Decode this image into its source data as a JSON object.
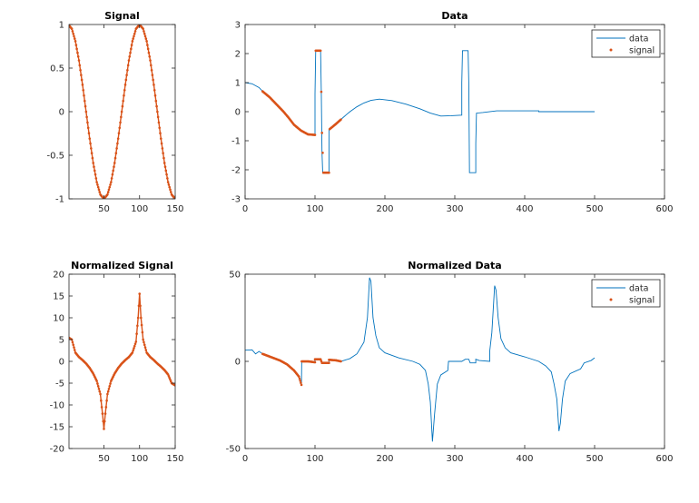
{
  "colors": {
    "data": "#0072BD",
    "signal": "#D95319",
    "axis": "#262626"
  },
  "chart_data": [
    {
      "id": "signal",
      "type": "line",
      "title": "Signal",
      "xlim": [
        1,
        150
      ],
      "ylim": [
        -1,
        1
      ],
      "xticks": [
        50,
        100,
        150
      ],
      "xtick_labels": [
        "50",
        "100",
        "150"
      ],
      "yticks": [
        -1,
        -0.5,
        0,
        0.5,
        1
      ],
      "ytick_labels": [
        "-1",
        "-0.5",
        "0",
        "0.5",
        "1"
      ],
      "legend": null,
      "series": [
        {
          "name": "signal",
          "style": "line+dots",
          "color": "signal",
          "points": [
            [
              0,
              1
            ],
            [
              5,
              0.951
            ],
            [
              10,
              0.809
            ],
            [
              15,
              0.588
            ],
            [
              20,
              0.309
            ],
            [
              25,
              0
            ],
            [
              30,
              -0.309
            ],
            [
              35,
              -0.588
            ],
            [
              40,
              -0.809
            ],
            [
              45,
              -0.951
            ],
            [
              50,
              -1
            ],
            [
              55,
              -0.951
            ],
            [
              60,
              -0.809
            ],
            [
              65,
              -0.588
            ],
            [
              70,
              -0.309
            ],
            [
              75,
              0
            ],
            [
              80,
              0.309
            ],
            [
              85,
              0.588
            ],
            [
              90,
              0.809
            ],
            [
              95,
              0.951
            ],
            [
              100,
              1
            ],
            [
              105,
              0.951
            ],
            [
              110,
              0.809
            ],
            [
              115,
              0.588
            ],
            [
              120,
              0.309
            ],
            [
              125,
              0
            ],
            [
              130,
              -0.309
            ],
            [
              135,
              -0.588
            ],
            [
              140,
              -0.809
            ],
            [
              145,
              -0.951
            ],
            [
              150,
              -1
            ]
          ]
        }
      ]
    },
    {
      "id": "data",
      "type": "line",
      "title": "Data",
      "xlim": [
        0,
        600
      ],
      "ylim": [
        -3,
        3
      ],
      "xticks": [
        0,
        100,
        200,
        300,
        400,
        500,
        600
      ],
      "xtick_labels": [
        "0",
        "100",
        "200",
        "300",
        "400",
        "500",
        "600"
      ],
      "yticks": [
        -3,
        -2,
        -1,
        0,
        1,
        2,
        3
      ],
      "ytick_labels": [
        "-3",
        "-2",
        "-1",
        "0",
        "1",
        "2",
        "3"
      ],
      "legend": {
        "position": "top-right",
        "entries": [
          "data",
          "signal"
        ]
      },
      "series": [
        {
          "name": "data",
          "style": "line",
          "color": "data",
          "points": [
            [
              0,
              1
            ],
            [
              10,
              0.96
            ],
            [
              20,
              0.83
            ],
            [
              25,
              0.7
            ],
            [
              35,
              0.5
            ],
            [
              45,
              0.25
            ],
            [
              55,
              0
            ],
            [
              62,
              -0.2
            ],
            [
              70,
              -0.45
            ],
            [
              80,
              -0.65
            ],
            [
              90,
              -0.78
            ],
            [
              100,
              -0.8
            ],
            [
              100,
              0.6
            ],
            [
              101,
              2.1
            ],
            [
              108,
              2.1
            ],
            [
              109,
              0.7
            ],
            [
              110,
              -1.4
            ],
            [
              111,
              -2.1
            ],
            [
              120,
              -2.1
            ],
            [
              120,
              -0.6
            ],
            [
              130,
              -0.42
            ],
            [
              137,
              -0.27
            ],
            [
              145,
              -0.1
            ],
            [
              150,
              0
            ],
            [
              160,
              0.17
            ],
            [
              170,
              0.3
            ],
            [
              180,
              0.39
            ],
            [
              192,
              0.43
            ],
            [
              210,
              0.38
            ],
            [
              230,
              0.26
            ],
            [
              250,
              0.1
            ],
            [
              265,
              -0.05
            ],
            [
              280,
              -0.15
            ],
            [
              295,
              -0.14
            ],
            [
              310,
              -0.12
            ],
            [
              310,
              1.0
            ],
            [
              311,
              2.1
            ],
            [
              319,
              2.1
            ],
            [
              320,
              1.0
            ],
            [
              321,
              -2.1
            ],
            [
              330,
              -2.1
            ],
            [
              330,
              -1.1
            ],
            [
              331,
              -0.05
            ],
            [
              340,
              -0.03
            ],
            [
              360,
              0.03
            ],
            [
              420,
              0.03
            ],
            [
              420,
              0
            ],
            [
              500,
              0
            ]
          ]
        },
        {
          "name": "signal",
          "style": "dots",
          "color": "signal",
          "points": [
            [
              25,
              0.7
            ],
            [
              35,
              0.5
            ],
            [
              45,
              0.25
            ],
            [
              55,
              0
            ],
            [
              62,
              -0.2
            ],
            [
              70,
              -0.45
            ],
            [
              80,
              -0.65
            ],
            [
              90,
              -0.78
            ],
            [
              100,
              -0.8
            ],
            [
              101,
              2.1
            ],
            [
              108,
              2.1
            ],
            [
              110,
              -0.73
            ],
            [
              112,
              -2.1
            ],
            [
              120,
              -2.1
            ],
            [
              121,
              -0.6
            ],
            [
              130,
              -0.42
            ],
            [
              137,
              -0.27
            ]
          ]
        }
      ]
    },
    {
      "id": "normalized-signal",
      "type": "line",
      "title": "Normalized Signal",
      "xlim": [
        1,
        150
      ],
      "ylim": [
        -20,
        20
      ],
      "xticks": [
        50,
        100,
        150
      ],
      "xtick_labels": [
        "50",
        "100",
        "150"
      ],
      "yticks": [
        -20,
        -15,
        -10,
        -5,
        0,
        5,
        10,
        15,
        20
      ],
      "ytick_labels": [
        "-20",
        "-15",
        "-10",
        "-5",
        "0",
        "5",
        "10",
        "15",
        "20"
      ],
      "legend": null,
      "series": [
        {
          "name": "signal",
          "style": "line+dots",
          "color": "signal",
          "points": [
            [
              0,
              5.5
            ],
            [
              5,
              5
            ],
            [
              10,
              2
            ],
            [
              15,
              1
            ],
            [
              20,
              0.3
            ],
            [
              25,
              -0.5
            ],
            [
              30,
              -1.5
            ],
            [
              35,
              -2.8
            ],
            [
              40,
              -4.5
            ],
            [
              45,
              -7.5
            ],
            [
              48,
              -12
            ],
            [
              50,
              -15.5
            ],
            [
              52,
              -12
            ],
            [
              55,
              -7.5
            ],
            [
              60,
              -4.5
            ],
            [
              65,
              -2.8
            ],
            [
              70,
              -1.5
            ],
            [
              75,
              -0.5
            ],
            [
              80,
              0.3
            ],
            [
              85,
              1
            ],
            [
              90,
              2
            ],
            [
              95,
              4.5
            ],
            [
              98,
              10
            ],
            [
              100,
              15.5
            ],
            [
              102,
              10
            ],
            [
              105,
              5
            ],
            [
              110,
              2
            ],
            [
              115,
              1
            ],
            [
              120,
              0.3
            ],
            [
              125,
              -0.5
            ],
            [
              130,
              -1.2
            ],
            [
              135,
              -2
            ],
            [
              140,
              -3
            ],
            [
              145,
              -5
            ],
            [
              150,
              -5.5
            ]
          ]
        }
      ]
    },
    {
      "id": "normalized-data",
      "type": "line",
      "title": "Normalized Data",
      "xlim": [
        0,
        600
      ],
      "ylim": [
        -50,
        50
      ],
      "xticks": [
        0,
        100,
        200,
        300,
        400,
        500,
        600
      ],
      "xtick_labels": [
        "0",
        "100",
        "200",
        "300",
        "400",
        "500",
        "600"
      ],
      "yticks": [
        -50,
        0,
        50
      ],
      "ytick_labels": [
        "-50",
        "0",
        "50"
      ],
      "legend": {
        "position": "top-right",
        "entries": [
          "data",
          "signal"
        ]
      },
      "series": [
        {
          "name": "data",
          "style": "line",
          "color": "data",
          "points": [
            [
              0,
              6.4
            ],
            [
              10,
              6.6
            ],
            [
              15,
              4.3
            ],
            [
              20,
              5.7
            ],
            [
              25,
              4.3
            ],
            [
              50,
              0.5
            ],
            [
              60,
              -1.7
            ],
            [
              70,
              -5.2
            ],
            [
              77,
              -8.7
            ],
            [
              80.6,
              -13.5
            ],
            [
              81,
              0
            ],
            [
              90,
              0
            ],
            [
              100,
              -0.5
            ],
            [
              100,
              1.2
            ],
            [
              108,
              1.2
            ],
            [
              110,
              -0.9
            ],
            [
              120,
              -0.9
            ],
            [
              120,
              0.9
            ],
            [
              130,
              0.6
            ],
            [
              137,
              0
            ],
            [
              150,
              1.6
            ],
            [
              160,
              4.3
            ],
            [
              170,
              11
            ],
            [
              175,
              25
            ],
            [
              178,
              48
            ],
            [
              180,
              46
            ],
            [
              183,
              25
            ],
            [
              187,
              14.8
            ],
            [
              192,
              7.8
            ],
            [
              200,
              4.9
            ],
            [
              220,
              2
            ],
            [
              240,
              0
            ],
            [
              250,
              -1.7
            ],
            [
              258,
              -5.2
            ],
            [
              262,
              -13
            ],
            [
              265,
              -23.4
            ],
            [
              268,
              -46
            ],
            [
              271,
              -30.5
            ],
            [
              275,
              -13
            ],
            [
              280,
              -7.8
            ],
            [
              290,
              -5.2
            ],
            [
              291,
              0
            ],
            [
              310,
              0
            ],
            [
              315,
              1.2
            ],
            [
              320,
              1.2
            ],
            [
              322,
              -0.9
            ],
            [
              330,
              -0.9
            ],
            [
              330,
              1.2
            ],
            [
              335,
              0.5
            ],
            [
              350,
              0
            ],
            [
              350,
              6
            ],
            [
              353,
              16.5
            ],
            [
              357,
              43.4
            ],
            [
              359,
              40.8
            ],
            [
              362,
              25
            ],
            [
              366,
              13
            ],
            [
              372,
              7.8
            ],
            [
              380,
              4.9
            ],
            [
              400,
              2.6
            ],
            [
              420,
              0
            ],
            [
              430,
              -2.6
            ],
            [
              438,
              -6
            ],
            [
              442,
              -13
            ],
            [
              446,
              -21.7
            ],
            [
              449,
              -40
            ],
            [
              451,
              -35.6
            ],
            [
              454,
              -21.7
            ],
            [
              458,
              -11.3
            ],
            [
              465,
              -7
            ],
            [
              480,
              -4.3
            ],
            [
              485,
              -0.9
            ],
            [
              495,
              0.5
            ],
            [
              500,
              2
            ]
          ]
        },
        {
          "name": "signal",
          "style": "dots",
          "color": "signal",
          "points": [
            [
              25,
              4.3
            ],
            [
              50,
              0.5
            ],
            [
              60,
              -1.7
            ],
            [
              70,
              -5.2
            ],
            [
              77,
              -8.7
            ],
            [
              80.6,
              -13.5
            ],
            [
              81,
              0
            ],
            [
              90,
              0
            ],
            [
              100,
              -0.5
            ],
            [
              100,
              1.2
            ],
            [
              108,
              1.2
            ],
            [
              110,
              -0.9
            ],
            [
              120,
              -0.9
            ],
            [
              120,
              0.9
            ],
            [
              130,
              0.6
            ],
            [
              137,
              0
            ]
          ]
        }
      ]
    }
  ]
}
